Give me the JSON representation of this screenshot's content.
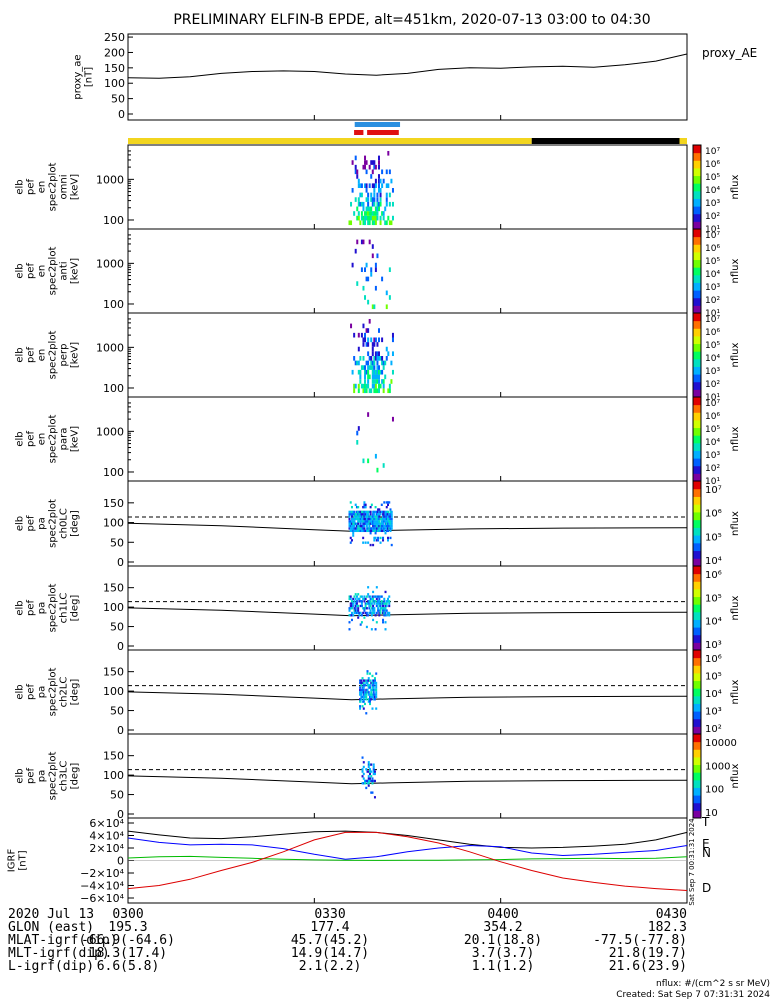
{
  "title": "PRELIMINARY ELFIN-B EPDE, alt=451km, 2020-07-13 03:00 to 04:30",
  "colors": {
    "sc_day": "#f2d51f",
    "sc_night": "#000000",
    "sci_blue": "#2a8fe0",
    "sci_red": "#e01010",
    "bx": "#0000ff",
    "by": "#00bb00",
    "bz": "#dd0000",
    "btotal": "#000000",
    "colorbar": [
      "#ffffff",
      "#7a00a0",
      "#2010d0",
      "#0060ff",
      "#00b0ff",
      "#00e0c0",
      "#00ff60",
      "#70ff00",
      "#d0ff00",
      "#ffd000",
      "#ff7000",
      "#e00000"
    ]
  },
  "chart_data": [
    {
      "id": "proxy_ae",
      "type": "line",
      "series_name": "proxy_AE",
      "ylabel": "proxy_ae\n[nT]",
      "yticks": [
        "250",
        "200",
        "150",
        "100",
        "50",
        "0"
      ],
      "ylim": [
        0,
        260
      ],
      "x": [
        0,
        5,
        10,
        15,
        20,
        25,
        30,
        35,
        40,
        45,
        50,
        55,
        60,
        65,
        70,
        75,
        80,
        85,
        90
      ],
      "y": [
        118,
        116,
        121,
        132,
        138,
        140,
        138,
        130,
        126,
        132,
        145,
        150,
        149,
        153,
        155,
        152,
        160,
        172,
        195
      ]
    },
    {
      "id": "en_omni",
      "type": "heatmap",
      "ylabel": "elb\npef\nen\nspec2plot\nomni\n[keV]",
      "yticks": [
        "1000",
        "100"
      ],
      "cbar_label": "nflux",
      "cbar_ticks": [
        "10⁷",
        "10⁶",
        "10⁵",
        "10⁴",
        "10³",
        "10²",
        "10¹"
      ]
    },
    {
      "id": "en_anti",
      "type": "heatmap",
      "ylabel": "elb\npef\nen\nspec2plot\nanti\n[keV]",
      "yticks": [
        "1000",
        "100"
      ],
      "cbar_label": "nflux",
      "cbar_ticks": [
        "10⁷",
        "10⁶",
        "10⁵",
        "10⁴",
        "10³",
        "10²",
        "10¹"
      ]
    },
    {
      "id": "en_perp",
      "type": "heatmap",
      "ylabel": "elb\npef\nen\nspec2plot\nperp\n[keV]",
      "yticks": [
        "1000",
        "100"
      ],
      "cbar_label": "nflux",
      "cbar_ticks": [
        "10⁷",
        "10⁶",
        "10⁵",
        "10⁴",
        "10³",
        "10²",
        "10¹"
      ]
    },
    {
      "id": "en_para",
      "type": "heatmap",
      "ylabel": "elb\npef\nen\nspec2plot\npara\n[keV]",
      "yticks": [
        "1000",
        "100"
      ],
      "cbar_label": "nflux",
      "cbar_ticks": [
        "10⁷",
        "10⁶",
        "10⁵",
        "10⁴",
        "10³",
        "10²",
        "10¹"
      ]
    },
    {
      "id": "pa_ch0",
      "type": "heatmap",
      "ylabel": "elb\npef\npa\nspec2plot\nch0LC\n[deg]",
      "yticks": [
        "150",
        "100",
        "50",
        "0"
      ],
      "cbar_label": "nflux",
      "cbar_ticks": [
        "10⁷",
        "10⁶",
        "10⁵",
        "10⁴"
      ]
    },
    {
      "id": "pa_ch1",
      "type": "heatmap",
      "ylabel": "elb\npef\npa\nspec2plot\nch1LC\n[deg]",
      "yticks": [
        "150",
        "100",
        "50",
        "0"
      ],
      "cbar_label": "nflux",
      "cbar_ticks": [
        "10⁶",
        "10⁵",
        "10⁴",
        "10³"
      ]
    },
    {
      "id": "pa_ch2",
      "type": "heatmap",
      "ylabel": "elb\npef\npa\nspec2plot\nch2LC\n[deg]",
      "yticks": [
        "150",
        "100",
        "50",
        "0"
      ],
      "cbar_label": "nflux",
      "cbar_ticks": [
        "10⁶",
        "10⁵",
        "10⁴",
        "10³",
        "10²"
      ]
    },
    {
      "id": "pa_ch3",
      "type": "heatmap",
      "ylabel": "elb\npef\npa\nspec2plot\nch3LC\n[deg]",
      "yticks": [
        "150",
        "100",
        "50",
        "0"
      ],
      "cbar_label": "nflux",
      "cbar_ticks": [
        "10000",
        "1000",
        "100",
        "10"
      ]
    },
    {
      "id": "igrf",
      "type": "line",
      "ylabel": "IGRF\n[nT]",
      "yticks": [
        "6×10⁴",
        "4×10⁴",
        "2×10⁴",
        "0",
        "−2×10⁴",
        "−4×10⁴",
        "−6×10⁴"
      ],
      "ylim": [
        -60000,
        60000
      ],
      "legend": [
        "T",
        "E",
        "N",
        "D"
      ],
      "x": [
        0,
        5,
        10,
        15,
        20,
        25,
        30,
        35,
        40,
        45,
        50,
        55,
        60,
        65,
        70,
        75,
        80,
        85,
        90
      ],
      "series": [
        {
          "name": "T",
          "values": [
            47000,
            41000,
            36000,
            35000,
            38000,
            42000,
            46000,
            47000,
            45000,
            40000,
            33000,
            26000,
            21000,
            20000,
            21000,
            23000,
            26000,
            33000,
            45000
          ]
        },
        {
          "name": "E",
          "values": [
            4000,
            6000,
            6500,
            5000,
            3500,
            2000,
            1000,
            300,
            200,
            300,
            500,
            1000,
            1500,
            2500,
            3000,
            3500,
            3000,
            3500,
            6000
          ]
        },
        {
          "name": "N",
          "values": [
            36000,
            29000,
            25000,
            26000,
            25000,
            19000,
            10000,
            2000,
            6000,
            14000,
            20000,
            24000,
            22000,
            12000,
            8000,
            10000,
            13000,
            16000,
            24000
          ]
        },
        {
          "name": "D",
          "values": [
            -45000,
            -40000,
            -30000,
            -16000,
            -3000,
            14000,
            33000,
            45000,
            45000,
            38000,
            28000,
            14000,
            -2000,
            -16000,
            -28000,
            -35000,
            -41000,
            -45000,
            -48000
          ]
        }
      ]
    }
  ],
  "time_labels": [
    "0300",
    "0330",
    "0400",
    "0430"
  ],
  "footer_rows": [
    {
      "label": "2020 Jul 13",
      "values": [
        "",
        "",
        "",
        ""
      ]
    },
    {
      "label": "GLON (east)",
      "values": [
        "195.3",
        "177.4",
        "354.2",
        "182.3"
      ]
    },
    {
      "label": "MLAT-igrf(dip)",
      "values": [
        "-66.9(-64.6)",
        "45.7(45.2)",
        "20.1(18.8)",
        "-77.5(-77.8)"
      ]
    },
    {
      "label": "MLT-igrf(dip)",
      "values": [
        "18.3(17.4)",
        "14.9(14.7)",
        "3.7(3.7)",
        "21.8(19.7)"
      ]
    },
    {
      "label": "L-igrf(dip)",
      "values": [
        "6.6(5.8)",
        "2.1(2.2)",
        "1.1(1.2)",
        "21.6(23.9)"
      ]
    }
  ],
  "credits": {
    "units": "nflux: #/(cm^2 s sr MeV)",
    "created": "Created: Sat Sep  7 07:31:31 2024",
    "side": "Sat Sep  7 00:31:31 2024"
  }
}
